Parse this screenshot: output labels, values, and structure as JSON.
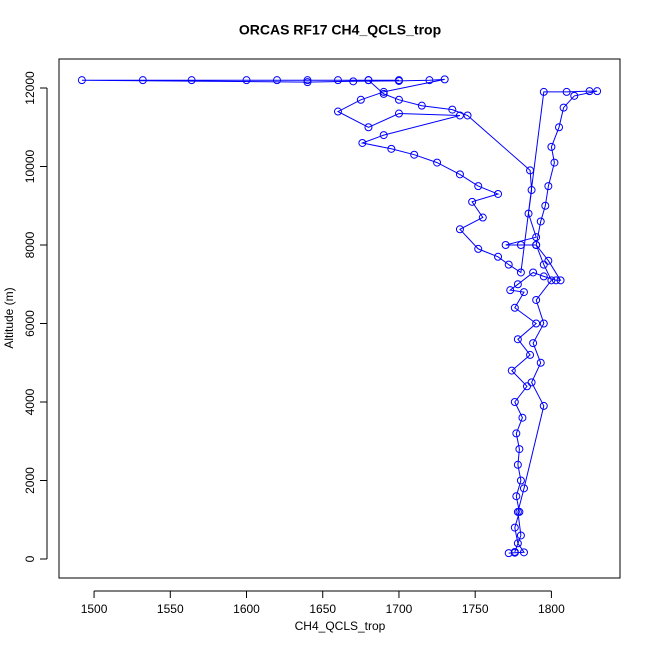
{
  "chart_data": {
    "type": "scatter",
    "title": "ORCAS RF17 CH4_QCLS_trop",
    "x_label": "CH4_QCLS_trop",
    "y_label": "Altitude (m)",
    "color": "#0000ff",
    "connected": true,
    "x": [
      1772,
      1776,
      1782,
      1778,
      1776,
      1779,
      1777,
      1780,
      1778,
      1779,
      1777,
      1781,
      1776,
      1784,
      1774,
      1786,
      1778,
      1790,
      1776,
      1782,
      1773,
      1778,
      1788,
      1795,
      1803,
      1806,
      1798,
      1790,
      1780,
      1770,
      1790,
      1785,
      1787,
      1786,
      1745,
      1735,
      1715,
      1700,
      1690,
      1680,
      1700,
      1680,
      1660,
      1640,
      1620,
      1600,
      1564,
      1532,
      1492,
      1640,
      1670,
      1700,
      1720,
      1730,
      1690,
      1675,
      1660,
      1680,
      1700,
      1740,
      1690,
      1676,
      1695,
      1710,
      1725,
      1740,
      1752,
      1765,
      1748,
      1755,
      1740,
      1752,
      1765,
      1772,
      1780,
      1795,
      1810,
      1825,
      1830,
      1815,
      1808,
      1805,
      1800,
      1802,
      1798,
      1796,
      1793,
      1790,
      1795,
      1800,
      1790,
      1795,
      1788,
      1793,
      1787,
      1795,
      1782,
      1778,
      1780,
      1776
    ],
    "values": [
      150,
      160,
      170,
      400,
      800,
      1200,
      1600,
      2000,
      2400,
      2800,
      3200,
      3600,
      4000,
      4400,
      4800,
      5200,
      5600,
      6000,
      6400,
      6800,
      6850,
      7000,
      7300,
      7200,
      7100,
      7100,
      7600,
      8000,
      8000,
      8000,
      8200,
      8800,
      9400,
      9900,
      11300,
      11450,
      11550,
      11700,
      11850,
      12200,
      12200,
      12200,
      12200,
      12200,
      12200,
      12200,
      12200,
      12200,
      12200,
      12150,
      12170,
      12180,
      12200,
      12220,
      11900,
      11700,
      11400,
      11000,
      11350,
      11300,
      10800,
      10600,
      10450,
      10300,
      10100,
      9800,
      9500,
      9300,
      9100,
      8700,
      8400,
      7900,
      7700,
      7500,
      7300,
      11900,
      11900,
      11920,
      11920,
      11800,
      11500,
      11000,
      10500,
      10100,
      9500,
      9000,
      8600,
      8000,
      7500,
      7100,
      6600,
      6000,
      5500,
      5000,
      4500,
      3900,
      1800,
      1200,
      600,
      180
    ],
    "xlim": [
      1477,
      1845
    ],
    "ylim": [
      -484,
      12739
    ],
    "xticks": [
      1500,
      1550,
      1600,
      1650,
      1700,
      1750,
      1800
    ],
    "yticks": [
      0,
      2000,
      4000,
      6000,
      8000,
      10000,
      12000
    ]
  }
}
